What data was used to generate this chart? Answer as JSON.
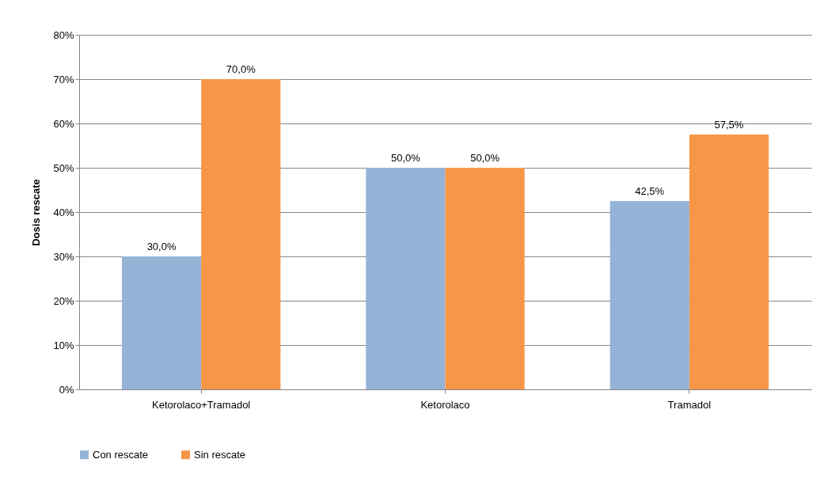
{
  "chart_data": {
    "type": "bar",
    "ylabel": "Dosis rescate",
    "categories": [
      "Ketorolaco+Tramadol",
      "Ketorolaco",
      "Tramadol"
    ],
    "series": [
      {
        "name": "Con rescate",
        "color": "#95b3d7",
        "values": [
          30.0,
          50.0,
          42.5
        ],
        "value_labels": [
          "30,0%",
          "50,0%",
          "42,5%"
        ]
      },
      {
        "name": "Sin rescate",
        "color": "#f79646",
        "values": [
          70.0,
          50.0,
          57.5
        ],
        "value_labels": [
          "70,0%",
          "50,0%",
          "57,5%"
        ]
      }
    ],
    "ylim": [
      0,
      80
    ],
    "yticks": [
      {
        "value": 0,
        "label": "0%"
      },
      {
        "value": 10,
        "label": "10%"
      },
      {
        "value": 20,
        "label": "20%"
      },
      {
        "value": 30,
        "label": "30%"
      },
      {
        "value": 40,
        "label": "40%"
      },
      {
        "value": 50,
        "label": "50%"
      },
      {
        "value": 60,
        "label": "60%"
      },
      {
        "value": 70,
        "label": "70%"
      },
      {
        "value": 80,
        "label": "80%"
      }
    ],
    "grid": "y",
    "legend": "bottom"
  }
}
